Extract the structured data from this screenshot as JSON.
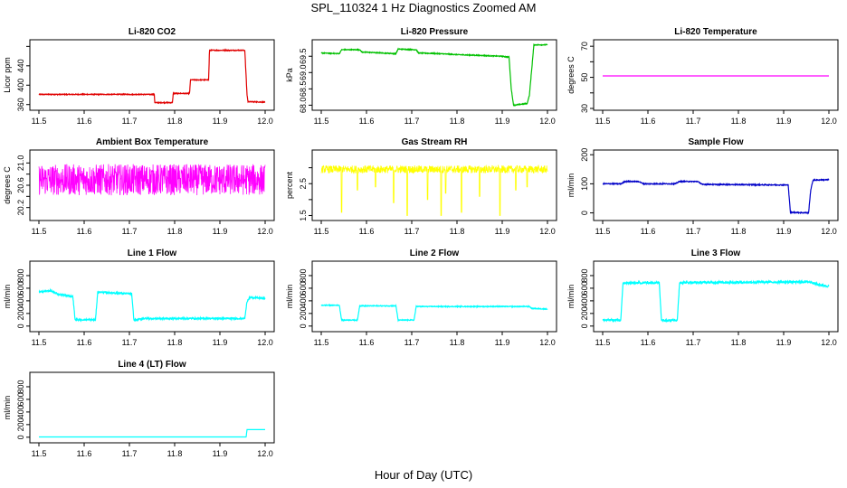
{
  "figure_title": "SPL_110324  1 Hz Diagnostics Zoomed AM",
  "xlabel": "Hour of Day (UTC)",
  "colors": {
    "red": "#e00000",
    "green": "#00c000",
    "magenta": "#ff00ff",
    "yellow": "#ffff00",
    "blue": "#0000c8",
    "cyan": "#00ffff"
  },
  "chart_data": [
    {
      "type": "line",
      "title": "Li-820 CO2",
      "ylabel": "Licor ppm",
      "xlim": [
        11.5,
        12.0
      ],
      "ylim": [
        352,
        490
      ],
      "xticks": [
        "11.5",
        "11.6",
        "11.7",
        "11.8",
        "11.9",
        "12.0"
      ],
      "yticks": [
        360,
        400,
        440,
        480
      ],
      "yticks_shown": [
        "360",
        "400",
        "440"
      ],
      "color": "#e00000",
      "noise": 0.8,
      "x": [
        11.5,
        11.755,
        11.756,
        11.795,
        11.797,
        11.833,
        11.835,
        11.875,
        11.877,
        11.955,
        11.96,
        11.962,
        12.0
      ],
      "values": [
        381,
        381,
        364,
        364,
        383,
        383,
        411,
        411,
        472,
        472,
        380,
        366,
        365
      ]
    },
    {
      "type": "line",
      "title": "Li-820 Pressure",
      "ylabel": "kPa",
      "xlim": [
        11.5,
        12.0
      ],
      "ylim": [
        67.9,
        69.95
      ],
      "xticks": [
        "11.5",
        "11.6",
        "11.7",
        "11.8",
        "11.9",
        "12.0"
      ],
      "yticks": [
        68.0,
        68.5,
        69.0,
        69.5
      ],
      "yticks_shown": [
        "68.0",
        "68.5",
        "69.0",
        "69.5"
      ],
      "color": "#00c000",
      "noise": 0.012,
      "x": [
        11.5,
        11.54,
        11.545,
        11.585,
        11.59,
        11.665,
        11.67,
        11.71,
        11.715,
        11.76,
        11.8,
        11.9,
        11.915,
        11.92,
        11.925,
        11.955,
        11.96,
        11.97,
        11.975,
        12.0
      ],
      "values": [
        69.6,
        69.58,
        69.7,
        69.7,
        69.63,
        69.58,
        69.72,
        69.7,
        69.6,
        69.58,
        69.55,
        69.5,
        69.47,
        68.5,
        68.0,
        68.05,
        68.3,
        69.85,
        69.85,
        69.85
      ]
    },
    {
      "type": "line",
      "title": "Li-820 Temperature",
      "ylabel": "degrees C",
      "xlim": [
        11.5,
        12.0
      ],
      "ylim": [
        30,
        73
      ],
      "xticks": [
        "11.5",
        "11.6",
        "11.7",
        "11.8",
        "11.9",
        "12.0"
      ],
      "yticks": [
        30,
        40,
        50,
        60,
        70
      ],
      "yticks_shown": [
        "30",
        "50",
        "70"
      ],
      "color": "#ff00ff",
      "noise": 0,
      "x": [
        11.5,
        12.0
      ],
      "values": [
        50.9,
        50.9
      ]
    },
    {
      "type": "line",
      "title": "Ambient Box Temperature",
      "ylabel": "degrees C",
      "xlim": [
        11.5,
        12.0
      ],
      "ylim": [
        20.0,
        21.2
      ],
      "xticks": [
        "11.5",
        "11.6",
        "11.7",
        "11.8",
        "11.9",
        "12.0"
      ],
      "yticks": [
        20.2,
        20.4,
        20.6,
        20.8,
        21.0
      ],
      "yticks_shown": [
        "20.2",
        "20.6",
        "21.0"
      ],
      "color": "#ff00ff",
      "noise": 0.28,
      "x": [
        11.5,
        12.0
      ],
      "values": [
        20.7,
        20.7
      ]
    },
    {
      "type": "line",
      "title": "Gas Stream RH",
      "ylabel": "percent",
      "xlim": [
        11.5,
        12.0
      ],
      "ylim": [
        1.4,
        3.5
      ],
      "xticks": [
        "11.5",
        "11.6",
        "11.7",
        "11.8",
        "11.9",
        "12.0"
      ],
      "yticks": [
        1.5,
        2.0,
        2.5,
        3.0
      ],
      "yticks_shown": [
        "1.5",
        "2.5"
      ],
      "color": "#ffff00",
      "noise": 0.12,
      "x": [
        11.5,
        12.0
      ],
      "values": [
        2.95,
        2.95
      ],
      "dips": [
        [
          11.545,
          1.6
        ],
        [
          11.58,
          2.3
        ],
        [
          11.62,
          2.4
        ],
        [
          11.66,
          1.9
        ],
        [
          11.69,
          1.5
        ],
        [
          11.735,
          2.0
        ],
        [
          11.765,
          1.5
        ],
        [
          11.775,
          2.2
        ],
        [
          11.81,
          1.6
        ],
        [
          11.85,
          2.1
        ],
        [
          11.895,
          1.5
        ],
        [
          11.93,
          2.3
        ],
        [
          11.955,
          2.4
        ]
      ]
    },
    {
      "type": "line",
      "title": "Sample Flow",
      "ylabel": "ml/min",
      "xlim": [
        11.5,
        12.0
      ],
      "ylim": [
        -20,
        210
      ],
      "xticks": [
        "11.5",
        "11.6",
        "11.7",
        "11.8",
        "11.9",
        "12.0"
      ],
      "yticks": [
        0,
        100,
        200
      ],
      "yticks_shown": [
        "0",
        "100",
        "200"
      ],
      "color": "#0000c8",
      "noise": 1.5,
      "x": [
        11.5,
        11.54,
        11.55,
        11.58,
        11.59,
        11.66,
        11.67,
        11.71,
        11.72,
        11.91,
        11.915,
        11.955,
        11.96,
        11.965,
        12.0
      ],
      "values": [
        100,
        100,
        108,
        108,
        100,
        100,
        108,
        108,
        98,
        96,
        2,
        0,
        80,
        113,
        114
      ]
    },
    {
      "type": "line",
      "title": "Line 1 Flow",
      "ylabel": "ml/min",
      "xlim": [
        11.5,
        12.0
      ],
      "ylim": [
        -60,
        1000
      ],
      "xticks": [
        "11.5",
        "11.6",
        "11.7",
        "11.8",
        "11.9",
        "12.0"
      ],
      "yticks": [
        0,
        200,
        400,
        600,
        800
      ],
      "yticks_shown": [
        "0",
        "200",
        "400",
        "600",
        "800"
      ],
      "color": "#00ffff",
      "noise": 12,
      "x": [
        11.5,
        11.525,
        11.545,
        11.575,
        11.58,
        11.625,
        11.63,
        11.705,
        11.71,
        11.73,
        11.955,
        11.96,
        11.965,
        12.0
      ],
      "values": [
        540,
        560,
        500,
        470,
        100,
        100,
        540,
        510,
        90,
        120,
        120,
        390,
        450,
        440
      ]
    },
    {
      "type": "line",
      "title": "Line 2 Flow",
      "ylabel": "ml/min",
      "xlim": [
        11.5,
        12.0
      ],
      "ylim": [
        -60,
        1000
      ],
      "xticks": [
        "11.5",
        "11.6",
        "11.7",
        "11.8",
        "11.9",
        "12.0"
      ],
      "yticks": [
        0,
        200,
        400,
        600,
        800
      ],
      "yticks_shown": [
        "0",
        "200",
        "400",
        "600",
        "800"
      ],
      "color": "#00ffff",
      "noise": 6,
      "x": [
        11.5,
        11.54,
        11.545,
        11.58,
        11.585,
        11.665,
        11.67,
        11.705,
        11.71,
        11.96,
        11.965,
        12.0
      ],
      "values": [
        330,
        330,
        95,
        95,
        320,
        320,
        95,
        95,
        310,
        310,
        280,
        270
      ]
    },
    {
      "type": "line",
      "title": "Line 3 Flow",
      "ylabel": "ml/min",
      "xlim": [
        11.5,
        12.0
      ],
      "ylim": [
        -60,
        1000
      ],
      "xticks": [
        "11.5",
        "11.6",
        "11.7",
        "11.8",
        "11.9",
        "12.0"
      ],
      "yticks": [
        0,
        200,
        400,
        600,
        800
      ],
      "yticks_shown": [
        "0",
        "200",
        "400",
        "600",
        "800"
      ],
      "color": "#00ffff",
      "noise": 18,
      "x": [
        11.5,
        11.54,
        11.545,
        11.625,
        11.63,
        11.665,
        11.67,
        11.96,
        11.975,
        12.0
      ],
      "values": [
        95,
        95,
        680,
        690,
        95,
        95,
        690,
        700,
        660,
        630
      ]
    },
    {
      "type": "line",
      "title": "Line 4 (LT) Flow",
      "ylabel": "ml/min",
      "xlim": [
        11.5,
        12.0
      ],
      "ylim": [
        -60,
        1000
      ],
      "xticks": [
        "11.5",
        "11.6",
        "11.7",
        "11.8",
        "11.9",
        "12.0"
      ],
      "yticks": [
        0,
        200,
        400,
        600,
        800
      ],
      "yticks_shown": [
        "0",
        "200",
        "400",
        "600",
        "800"
      ],
      "color": "#00ffff",
      "noise": 0,
      "x": [
        11.5,
        11.958,
        11.96,
        12.0
      ],
      "values": [
        5,
        5,
        120,
        120
      ]
    }
  ]
}
